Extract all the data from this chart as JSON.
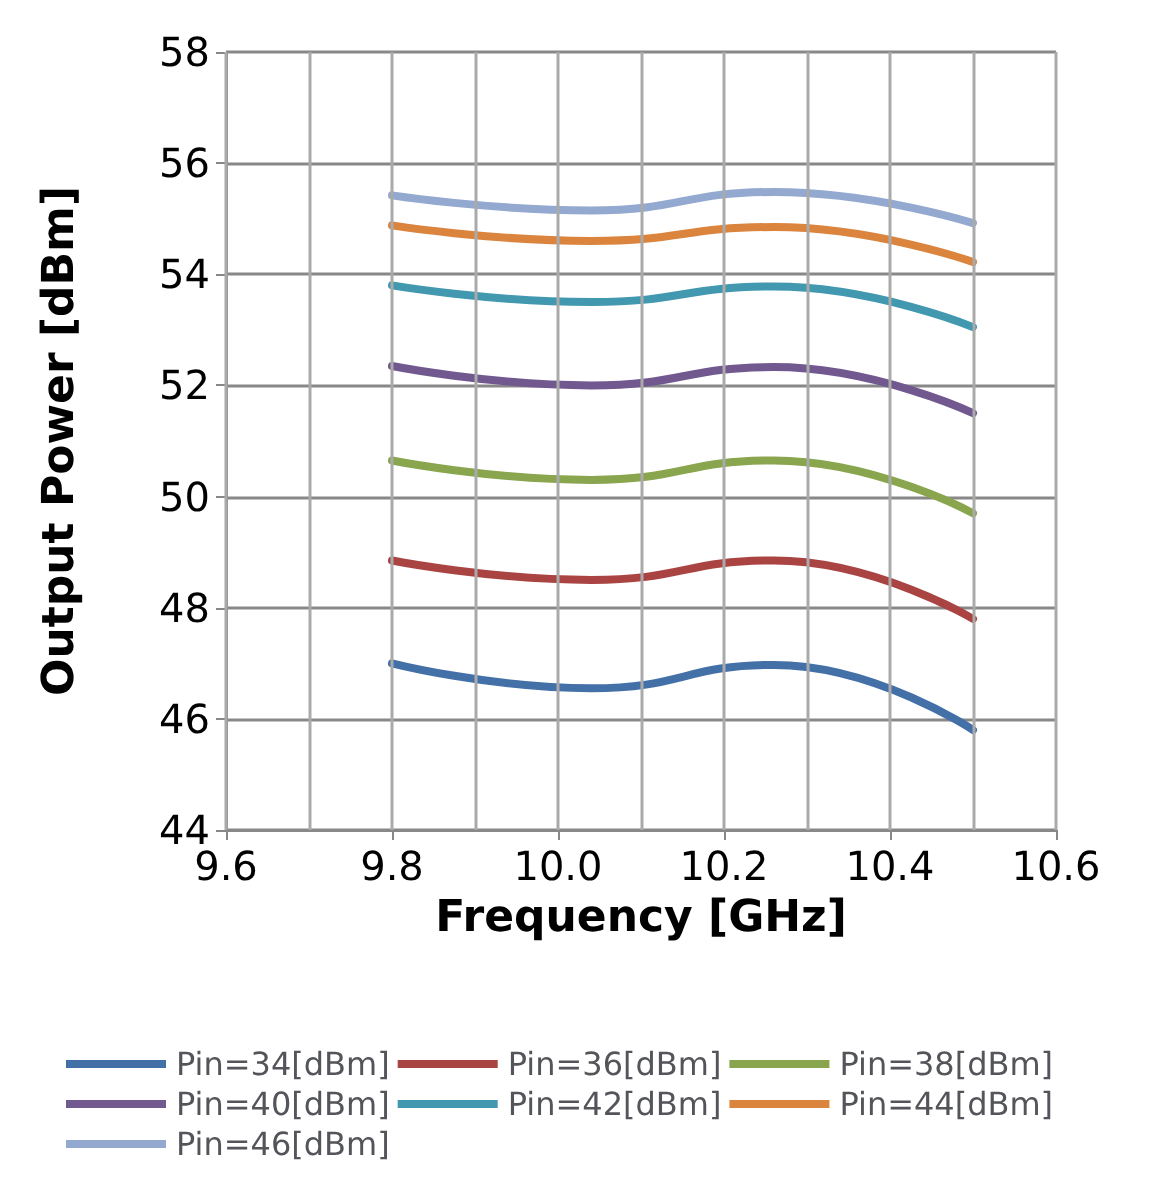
{
  "chart_data": {
    "type": "line",
    "xlabel": "Frequency [GHz]",
    "ylabel": "Output Power [dBm]",
    "x": [
      9.8,
      10.04,
      10.26,
      10.5
    ],
    "xlim": [
      9.6,
      10.6
    ],
    "xticks": [
      {
        "value": 9.6,
        "label": "9.6"
      },
      {
        "value": 9.8,
        "label": "9.8"
      },
      {
        "value": 10,
        "label": "10.0"
      },
      {
        "value": 10.2,
        "label": "10.2"
      },
      {
        "value": 10.4,
        "label": "10.4"
      },
      {
        "value": 10.6,
        "label": "10.6"
      }
    ],
    "ylim": [
      44,
      58
    ],
    "yticks": [
      44,
      46,
      48,
      50,
      52,
      54,
      56,
      58
    ],
    "grid": true,
    "legend": "bottom",
    "marker": "none",
    "line_style": "solid",
    "series": [
      {
        "name": "Pin=34[dBm]",
        "color": "#4470a8",
        "values": [
          47.0,
          46.55,
          46.97,
          45.8
        ]
      },
      {
        "name": "Pin=36[dBm]",
        "color": "#aa4442",
        "values": [
          48.85,
          48.5,
          48.85,
          47.8
        ]
      },
      {
        "name": "Pin=38[dBm]",
        "color": "#89a54e",
        "values": [
          50.65,
          50.3,
          50.65,
          49.7
        ]
      },
      {
        "name": "Pin=40[dBm]",
        "color": "#71588f",
        "values": [
          52.35,
          52.0,
          52.33,
          51.5
        ]
      },
      {
        "name": "Pin=42[dBm]",
        "color": "#4198af",
        "values": [
          53.8,
          53.5,
          53.78,
          53.05
        ]
      },
      {
        "name": "Pin=44[dBm]",
        "color": "#db843d",
        "values": [
          54.88,
          54.6,
          54.85,
          54.22
        ]
      },
      {
        "name": "Pin=46[dBm]",
        "color": "#93a9cf",
        "values": [
          55.42,
          55.15,
          55.48,
          54.92
        ]
      }
    ]
  }
}
